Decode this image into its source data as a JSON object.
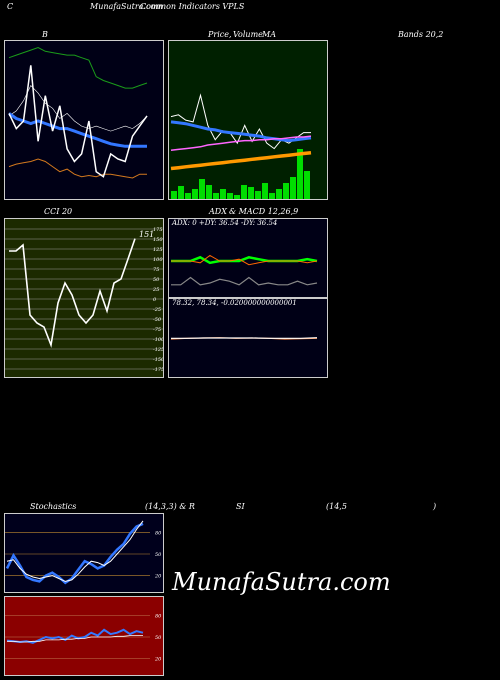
{
  "header": {
    "left": "C",
    "title": "MunafaSutra.com",
    "subtitle": "Common Indicators VPLS"
  },
  "labels": {
    "b": "B",
    "price_a": "Price,",
    "price_b": "Volume",
    "price_c": "MA",
    "bands": "Bands 20,2",
    "cci": "CCI 20",
    "adx": "ADX",
    "macd": "& MACD 12,26,9",
    "stoch": "Stochastics",
    "stoch_params": "(14,3,3) & R",
    "rsi_a": "SI",
    "rsi_b": "(14,5",
    "rsi_c": ")"
  },
  "watermark": "MunafaSutra.com",
  "colors": {
    "bands_bg": "#000016",
    "price_bg": "#002000",
    "cci_bg": "#1c2a00",
    "adx_bg": "#000016",
    "stoch_bg": "#00001c",
    "rsi_bg": "#8b0000"
  },
  "chart_data": [
    {
      "type": "line",
      "panel": "bollinger",
      "series": [
        {
          "values": [
            80,
            82,
            84,
            86,
            88,
            85,
            84,
            83,
            82,
            82,
            80,
            78,
            65,
            62,
            60,
            58,
            56,
            56,
            58,
            60
          ]
        },
        {
          "values": [
            34,
            38,
            46,
            58,
            52,
            44,
            40,
            32,
            36,
            30,
            26,
            24,
            26,
            24,
            22,
            24,
            26,
            24,
            28,
            34
          ]
        },
        {
          "values": [
            -6,
            -4,
            -3,
            -2,
            0,
            -2,
            -6,
            -10,
            -8,
            -12,
            -14,
            -13,
            -14,
            -12,
            -12,
            -13,
            -14,
            -15,
            -12,
            -12
          ]
        },
        {
          "values": [
            36,
            32,
            30,
            28,
            30,
            28,
            26,
            24,
            24,
            22,
            20,
            18,
            16,
            14,
            12,
            11,
            10,
            10,
            10,
            10
          ]
        },
        {
          "values": [
            36,
            24,
            30,
            74,
            14,
            50,
            22,
            42,
            8,
            -2,
            4,
            30,
            -10,
            -14,
            4,
            0,
            -2,
            18,
            26,
            34
          ]
        }
      ]
    },
    {
      "type": "line",
      "panel": "price-volume-ma",
      "series": [
        {
          "values": [
            40,
            42,
            36,
            34,
            64,
            30,
            14,
            24,
            22,
            10,
            30,
            12,
            26,
            10,
            4,
            14,
            10,
            16,
            22,
            22
          ]
        },
        {
          "values": [
            34,
            33,
            32,
            30,
            28,
            26,
            25,
            23,
            22,
            21,
            20,
            19,
            18,
            16,
            15,
            14,
            13,
            14,
            15,
            16
          ]
        },
        {
          "values": [
            2,
            3,
            4,
            5,
            6,
            8,
            9,
            10,
            11,
            12,
            13,
            13,
            14,
            14,
            15,
            15,
            16,
            17,
            17,
            18
          ]
        },
        {
          "values": [
            3,
            4,
            5,
            6,
            7,
            8,
            9,
            10,
            11,
            12,
            13,
            14,
            15,
            16,
            17,
            18,
            19,
            20,
            21,
            22
          ]
        },
        {
          "values": [
            8,
            13,
            6,
            10,
            20,
            14,
            6,
            10,
            6,
            4,
            14,
            12,
            8,
            16,
            6,
            10,
            16,
            22,
            50,
            28
          ]
        }
      ]
    },
    {
      "type": "line",
      "panel": "cci",
      "ylim": [
        -175,
        175
      ],
      "ticks": [
        175,
        150,
        125,
        100,
        75,
        50,
        25,
        0,
        -25,
        -50,
        -75,
        -100,
        -125,
        -150,
        -175
      ],
      "last_label": "151",
      "series": [
        {
          "values": [
            120,
            120,
            135,
            -40,
            -60,
            -70,
            -115,
            -10,
            40,
            10,
            -40,
            -60,
            -40,
            20,
            -30,
            40,
            50,
            100,
            151
          ]
        }
      ]
    },
    {
      "type": "line",
      "panel": "adx",
      "readout": "ADX: 0  +DY: 36.54  -DY: 36.54",
      "series": [
        {
          "values": [
            36,
            36,
            36,
            40,
            34,
            36,
            36,
            36,
            40,
            38,
            36,
            36,
            36,
            36,
            38,
            36
          ]
        },
        {
          "values": [
            36,
            36,
            36,
            34,
            42,
            36,
            36,
            38,
            32,
            34,
            36,
            36,
            36,
            36,
            34,
            36
          ]
        },
        {
          "values": [
            10,
            10,
            18,
            10,
            12,
            16,
            14,
            10,
            18,
            10,
            12,
            10,
            10,
            14,
            10,
            12
          ]
        }
      ]
    },
    {
      "type": "line",
      "panel": "macd",
      "readout": "78.32,  78.34,  -0.020000000000001",
      "series": [
        {
          "values": [
            78.3,
            78.32,
            78.33,
            78.34,
            78.32,
            78.33,
            78.32,
            78.3,
            78.31,
            78.32
          ]
        },
        {
          "values": [
            78.32,
            78.32,
            78.33,
            78.33,
            78.33,
            78.33,
            78.32,
            78.32,
            78.32,
            78.34
          ]
        }
      ]
    },
    {
      "type": "line",
      "panel": "stochastics",
      "ylim": [
        0,
        100
      ],
      "ticks": [
        80,
        50,
        20
      ],
      "series": [
        {
          "values": [
            30,
            48,
            34,
            18,
            14,
            12,
            20,
            24,
            18,
            10,
            16,
            28,
            40,
            36,
            30,
            34,
            46,
            56,
            64,
            78,
            88,
            92
          ]
        },
        {
          "values": [
            40,
            42,
            30,
            22,
            18,
            16,
            18,
            20,
            16,
            12,
            14,
            22,
            32,
            40,
            38,
            34,
            40,
            50,
            60,
            70,
            84,
            96
          ]
        }
      ]
    },
    {
      "type": "line",
      "panel": "rsi",
      "ylim": [
        0,
        100
      ],
      "ticks": [
        80,
        50,
        20
      ],
      "series": [
        {
          "values": [
            45,
            44,
            43,
            44,
            42,
            46,
            50,
            48,
            50,
            46,
            52,
            48,
            50,
            56,
            52,
            60,
            54,
            56,
            60,
            54,
            58,
            56
          ]
        },
        {
          "values": [
            44,
            44,
            43,
            43,
            44,
            44,
            46,
            46,
            46,
            47,
            47,
            48,
            48,
            50,
            50,
            50,
            50,
            51,
            51,
            52,
            52,
            52
          ]
        }
      ]
    }
  ]
}
